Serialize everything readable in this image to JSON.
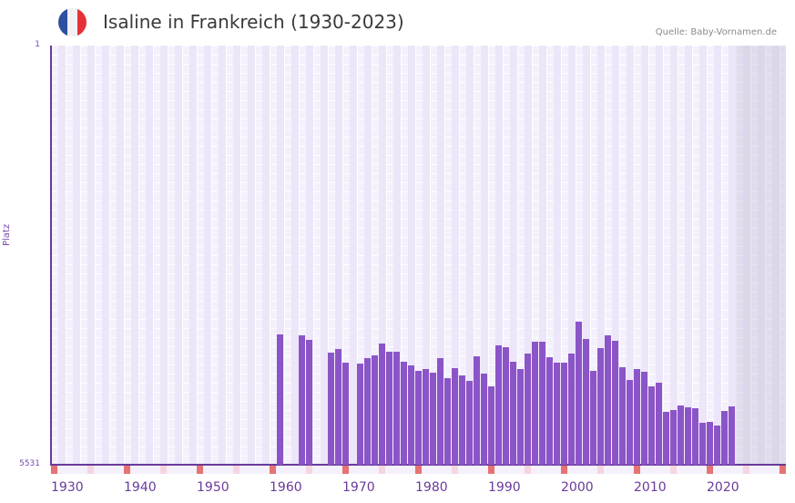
{
  "header": {
    "title": "Isaline in Frankreich (1930-2023)",
    "source": "Quelle: Baby-Vornamen.de",
    "flag_icon": "france-flag-icon",
    "flag_colors": [
      "#2d4fa0",
      "#f1f1f3",
      "#e5303a"
    ]
  },
  "axis": {
    "y_top": "1",
    "y_bottom": "5531",
    "y_label": "Platz"
  },
  "colors": {
    "bar": "#8b55c8",
    "axis": "#6a3a9a",
    "decade_marker": "#e57373",
    "half_decade_marker": "#f6d6de"
  },
  "chart_data": {
    "type": "bar",
    "title": "Isaline in Frankreich (1930-2023)",
    "xlabel": "",
    "ylabel": "Platz",
    "ylim": [
      5531,
      1
    ],
    "y_inverted": true,
    "xlim": [
      1930,
      2030
    ],
    "x_ticks": [
      1930,
      1940,
      1950,
      1960,
      1970,
      1980,
      1990,
      2000,
      2010,
      2020
    ],
    "grid": true,
    "legend": null,
    "x": [
      1961,
      1964,
      1965,
      1968,
      1969,
      1970,
      1972,
      1973,
      1974,
      1975,
      1976,
      1977,
      1978,
      1979,
      1980,
      1981,
      1982,
      1983,
      1984,
      1985,
      1986,
      1987,
      1988,
      1989,
      1990,
      1991,
      1992,
      1993,
      1994,
      1995,
      1996,
      1997,
      1998,
      1999,
      2000,
      2001,
      2002,
      2003,
      2004,
      2005,
      2006,
      2007,
      2008,
      2009,
      2010,
      2011,
      2012,
      2013,
      2014,
      2015,
      2016,
      2017,
      2018,
      2019,
      2020,
      2021,
      2022,
      2023
    ],
    "values": [
      3812,
      3824,
      3884,
      4052,
      4004,
      4184,
      4196,
      4124,
      4088,
      3932,
      4040,
      4040,
      4172,
      4220,
      4292,
      4268,
      4316,
      4124,
      4388,
      4256,
      4352,
      4424,
      4100,
      4328,
      4496,
      3956,
      3980,
      4172,
      4268,
      4064,
      3908,
      3908,
      4112,
      4184,
      4184,
      4064,
      3644,
      3872,
      4292,
      3992,
      3824,
      3896,
      4244,
      4412,
      4268,
      4304,
      4496,
      4448,
      4833,
      4809,
      4749,
      4773,
      4785,
      4977,
      4965,
      5013,
      4821,
      4761
    ]
  }
}
